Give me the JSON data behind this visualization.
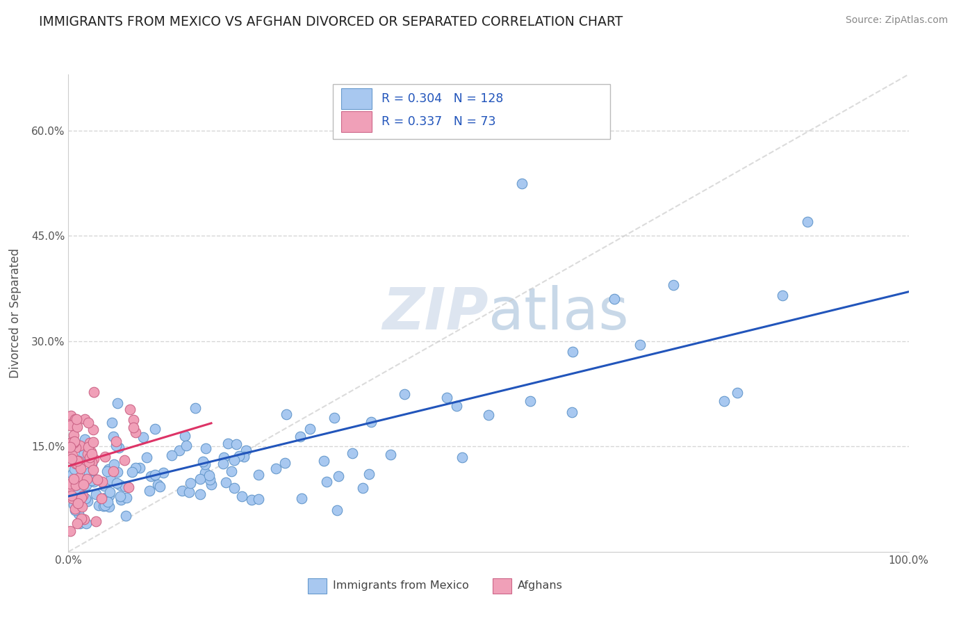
{
  "title": "IMMIGRANTS FROM MEXICO VS AFGHAN DIVORCED OR SEPARATED CORRELATION CHART",
  "source": "Source: ZipAtlas.com",
  "ylabel": "Divorced or Separated",
  "y_tick_labels": [
    "15.0%",
    "30.0%",
    "45.0%",
    "60.0%"
  ],
  "y_tick_values": [
    0.15,
    0.3,
    0.45,
    0.6
  ],
  "x_range": [
    0.0,
    1.0
  ],
  "y_range": [
    0.0,
    0.68
  ],
  "legend_blue_label": "Immigrants from Mexico",
  "legend_pink_label": "Afghans",
  "legend_r_blue": "0.304",
  "legend_n_blue": "128",
  "legend_r_pink": "0.337",
  "legend_n_pink": "73",
  "blue_dot_color": "#a8c8f0",
  "blue_dot_edge": "#6699cc",
  "blue_line_color": "#2255bb",
  "pink_dot_color": "#f0a0b8",
  "pink_dot_edge": "#cc6688",
  "pink_line_color": "#dd3366",
  "diagonal_line_color": "#cccccc",
  "background_color": "#ffffff",
  "grid_color": "#cccccc",
  "seed": 42
}
